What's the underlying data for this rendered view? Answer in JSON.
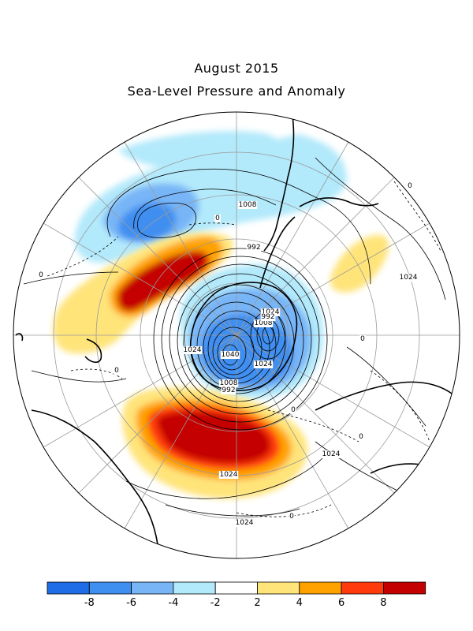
{
  "title": "August 2015",
  "subtitle": "Sea-Level Pressure and Anomaly",
  "colors": {
    "levels": [
      "#1e6de6",
      "#3f8ff0",
      "#78b5f7",
      "#b2e9fb",
      "#ffffff",
      "#ffe47a",
      "#ffa200",
      "#ff3b0d",
      "#c40000"
    ],
    "land_outline": "#000000",
    "grid": "#9a9a9a"
  },
  "colorbar": {
    "tick_labels": [
      "-8",
      "-6",
      "-4",
      "-2",
      "2",
      "4",
      "6",
      "8"
    ]
  },
  "contour_labels": [
    {
      "text": "1008"
    },
    {
      "text": "992"
    },
    {
      "text": "1024"
    },
    {
      "text": "1008"
    },
    {
      "text": "1024"
    },
    {
      "text": "1040"
    },
    {
      "text": "1024"
    },
    {
      "text": "1008"
    },
    {
      "text": "992"
    },
    {
      "text": "1024"
    },
    {
      "text": "1024"
    },
    {
      "text": "1024"
    },
    {
      "text": "1024"
    },
    {
      "text": "992"
    },
    {
      "text": "0"
    },
    {
      "text": "0"
    },
    {
      "text": "0"
    },
    {
      "text": "0"
    },
    {
      "text": "0"
    },
    {
      "text": "0"
    },
    {
      "text": "0"
    },
    {
      "text": "0"
    }
  ]
}
